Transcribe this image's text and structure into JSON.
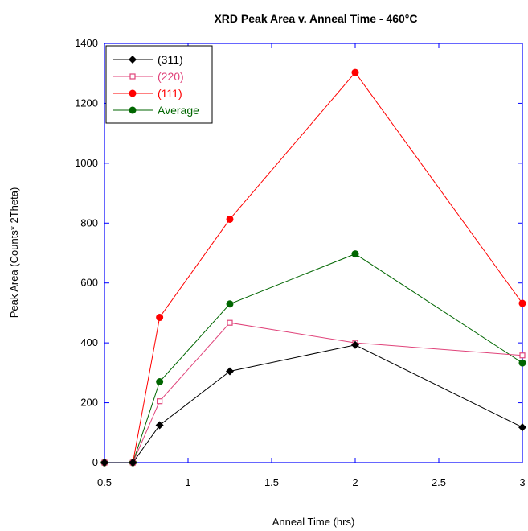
{
  "chart_data": {
    "type": "line",
    "title": "XRD Peak Area v. Anneal Time - 460°C",
    "xlabel": "Anneal Time (hrs)",
    "ylabel": "Peak Area (Counts* 2Theta)",
    "xlim": [
      0.5,
      3
    ],
    "ylim": [
      0,
      1400
    ],
    "xticks": [
      0.5,
      1,
      1.5,
      2,
      2.5,
      3
    ],
    "xtick_labels": [
      "0.5",
      "1",
      "1.5",
      "2",
      "2.5",
      "3"
    ],
    "yticks": [
      0,
      200,
      400,
      600,
      800,
      1000,
      1200,
      1400
    ],
    "ytick_labels": [
      "0",
      "200",
      "400",
      "600",
      "800",
      "1000",
      "1200",
      "1400"
    ],
    "grid": false,
    "legend_position": "top-left",
    "series": [
      {
        "name": "(311)",
        "color": "#000000",
        "marker": "diamond",
        "filled": true,
        "x": [
          0.5,
          0.67,
          0.83,
          1.25,
          2,
          3
        ],
        "y": [
          0,
          0,
          125,
          305,
          393,
          118
        ]
      },
      {
        "name": "(220)",
        "color": "#e0437a",
        "marker": "square",
        "filled": false,
        "x": [
          0.5,
          0.67,
          0.83,
          1.25,
          2,
          3
        ],
        "y": [
          0,
          0,
          205,
          467,
          400,
          358
        ]
      },
      {
        "name": "(111)",
        "color": "#ff0000",
        "marker": "circle",
        "filled": true,
        "x": [
          0.5,
          0.67,
          0.83,
          1.25,
          2,
          3
        ],
        "y": [
          0,
          0,
          485,
          813,
          1303,
          532
        ]
      },
      {
        "name": "Average",
        "color": "#006600",
        "marker": "circle",
        "filled": true,
        "x": [
          0.5,
          0.67,
          0.83,
          1.25,
          2,
          3
        ],
        "y": [
          0,
          0,
          270,
          530,
          697,
          333
        ]
      }
    ]
  }
}
